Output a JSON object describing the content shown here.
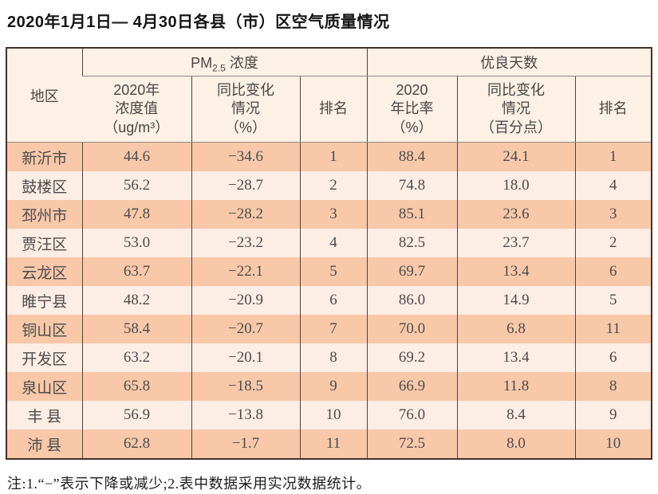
{
  "title": "2020年1月1日— 4月30日各县（市）区空气质量情况",
  "table": {
    "header": {
      "region": "地区",
      "pm_group": {
        "prefix": "PM",
        "sub": "2.5",
        "suffix": " 浓度"
      },
      "good_group": "优良天数",
      "pm_concentration": "2020年\n浓度值\n（ug/m³）",
      "pm_change": "同比变化\n情况\n（%）",
      "pm_rank": "排名",
      "good_ratio": "2020\n年比率\n（%）",
      "good_change": "同比变化\n情况\n（百分点）",
      "good_rank": "排名"
    },
    "rows": [
      {
        "cells": [
          "新沂市",
          "44.6",
          "−34.6",
          "1",
          "88.4",
          "24.1",
          "1"
        ]
      },
      {
        "cells": [
          "鼓楼区",
          "56.2",
          "−28.7",
          "2",
          "74.8",
          "18.0",
          "4"
        ]
      },
      {
        "cells": [
          "邳州市",
          "47.8",
          "−28.2",
          "3",
          "85.1",
          "23.6",
          "3"
        ]
      },
      {
        "cells": [
          "贾汪区",
          "53.0",
          "−23.2",
          "4",
          "82.5",
          "23.7",
          "2"
        ]
      },
      {
        "cells": [
          "云龙区",
          "63.7",
          "−22.1",
          "5",
          "69.7",
          "13.4",
          "6"
        ]
      },
      {
        "cells": [
          "睢宁县",
          "48.2",
          "−20.9",
          "6",
          "86.0",
          "14.9",
          "5"
        ]
      },
      {
        "cells": [
          "铜山区",
          "58.4",
          "−20.7",
          "7",
          "70.0",
          "6.8",
          "11"
        ]
      },
      {
        "cells": [
          "开发区",
          "63.2",
          "−20.1",
          "8",
          "69.2",
          "13.4",
          "6"
        ]
      },
      {
        "cells": [
          "泉山区",
          "65.8",
          "−18.5",
          "9",
          "66.9",
          "11.8",
          "8"
        ]
      },
      {
        "cells": [
          "丰 县",
          "56.9",
          "−13.8",
          "10",
          "76.0",
          "8.4",
          "9"
        ]
      },
      {
        "cells": [
          "沛 县",
          "62.8",
          "−1.7",
          "11",
          "72.5",
          "8.0",
          "10"
        ]
      }
    ]
  },
  "note": "注:1.“−”表示下降或减少;2.表中数据采用实况数据统计。",
  "colors": {
    "row_odd_bg": "#f8c8a9",
    "row_even_bg": "#fcede5",
    "header_bg": "#fdf0e5",
    "outer_border": "#443129",
    "inner_border": "#4d453f"
  }
}
